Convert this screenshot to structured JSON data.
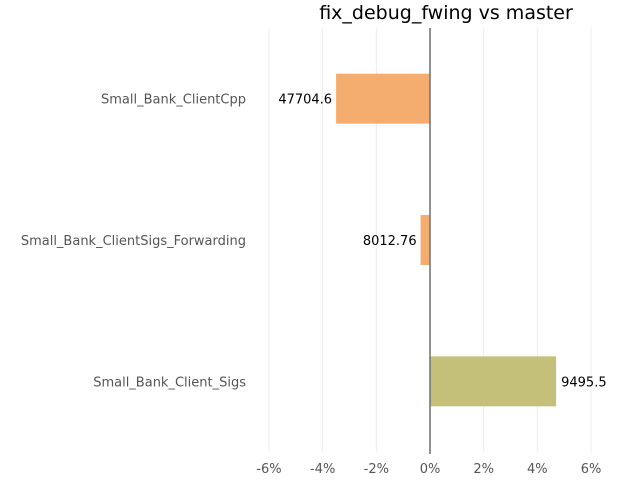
{
  "chart_data": {
    "type": "bar",
    "orientation": "horizontal",
    "title": "fix_debug_fwing vs master",
    "xlabel": "",
    "ylabel": "",
    "categories": [
      "Small_Bank_ClientCpp",
      "Small_Bank_ClientSigs_Forwarding",
      "Small_Bank_Client_Sigs"
    ],
    "values": [
      -3.5,
      -0.35,
      4.7
    ],
    "data_labels": [
      "47704.6",
      "8012.76",
      "9495.5"
    ],
    "bar_colors": [
      "#f5ad6f",
      "#f5ad6f",
      "#c4c07a"
    ],
    "xlim": [
      -6,
      6
    ],
    "xticks": [
      -6,
      -4,
      -2,
      0,
      2,
      4,
      6
    ],
    "xtick_labels": [
      "-6%",
      "-4%",
      "-2%",
      "0%",
      "2%",
      "4%",
      "6%"
    ],
    "grid": true,
    "legend": "none"
  }
}
